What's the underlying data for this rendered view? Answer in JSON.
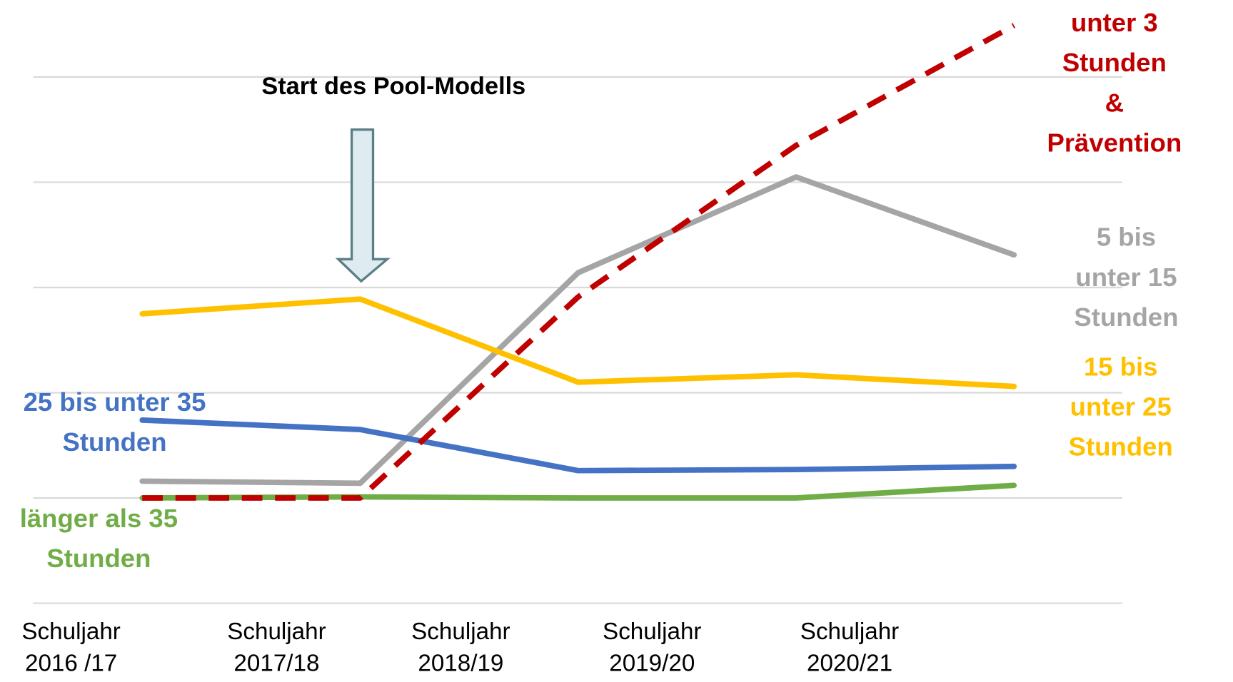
{
  "chart_data": {
    "type": "line",
    "annotation": "Start des Pool-Modells",
    "categories": [
      "Schuljahr\n2016 /17",
      "Schuljahr\n2017/18",
      "Schuljahr\n2018/19",
      "Schuljahr\n2019/20",
      "Schuljahr\n2020/21"
    ],
    "ylim": [
      0,
      5.75
    ],
    "yticks": [
      0,
      1,
      2,
      3,
      4,
      5
    ],
    "grid": true,
    "series": [
      {
        "name": "unter 3 Stunden\n& Prävention",
        "color": "#c00000",
        "dashed": true,
        "values": [
          1.0,
          1.0,
          2.91,
          4.35,
          5.49
        ]
      },
      {
        "name": "5 bis unter 15\nStunden",
        "color": "#a5a5a5",
        "values": [
          1.16,
          1.14,
          3.14,
          4.05,
          3.31
        ]
      },
      {
        "name": "15 bis unter 25\nStunden",
        "color": "#ffc000",
        "values": [
          2.75,
          2.89,
          2.1,
          2.17,
          2.06
        ]
      },
      {
        "name": "25 bis unter 35\nStunden",
        "color": "#4472c4",
        "values": [
          1.74,
          1.65,
          1.26,
          1.27,
          1.3
        ]
      },
      {
        "name": "länger als 35\nStunden",
        "color": "#70ad47",
        "values": [
          1.0,
          1.01,
          1.0,
          1.0,
          1.12
        ]
      }
    ]
  }
}
